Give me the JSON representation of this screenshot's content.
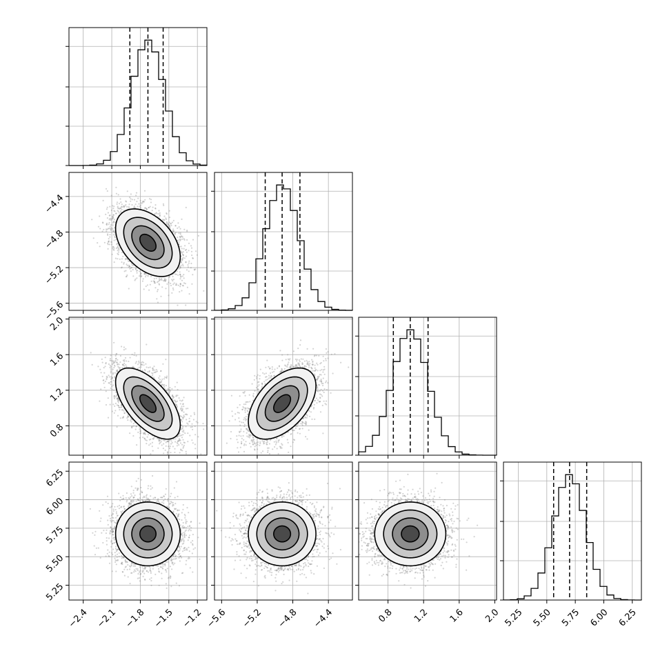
{
  "chart_data": {
    "type": "corner",
    "title": "",
    "grid": true,
    "quantiles": [
      0.16,
      0.5,
      0.84
    ],
    "colors": {
      "ink": "#000000",
      "grid": "#b0b0b0",
      "scatter": "#808080",
      "background": "#ffffff"
    },
    "parameters": [
      {
        "id": "p0",
        "range": [
          -2.55,
          -1.1
        ],
        "ticks": [
          -2.4,
          -2.1,
          -1.8,
          -1.5,
          -1.2
        ],
        "tick_labels": [
          "−2.4",
          "−2.1",
          "−1.8",
          "−1.5",
          "−1.2"
        ],
        "mean": -1.72,
        "sd": 0.17,
        "quantile_values": [
          -1.91,
          -1.72,
          -1.56
        ]
      },
      {
        "id": "p1",
        "range": [
          -5.68,
          -4.13
        ],
        "ticks": [
          -5.6,
          -5.2,
          -4.8,
          -4.4
        ],
        "tick_labels": [
          "−5.6",
          "−5.2",
          "−4.8",
          "−4.4"
        ],
        "mean": -4.92,
        "sd": 0.19,
        "quantile_values": [
          -5.11,
          -4.92,
          -4.72
        ]
      },
      {
        "id": "p2",
        "range": [
          0.47,
          2.02
        ],
        "ticks": [
          0.8,
          1.2,
          1.6,
          2.0
        ],
        "tick_labels": [
          "0.8",
          "1.2",
          "1.6",
          "2.0"
        ],
        "mean": 1.05,
        "sd": 0.2,
        "quantile_values": [
          0.86,
          1.05,
          1.25
        ]
      },
      {
        "id": "p3",
        "range": [
          5.12,
          6.33
        ],
        "ticks": [
          5.25,
          5.5,
          5.75,
          6.0,
          6.25
        ],
        "tick_labels": [
          "5.25",
          "5.50",
          "5.75",
          "6.00",
          "6.25"
        ],
        "mean": 5.7,
        "sd": 0.14,
        "quantile_values": [
          5.56,
          5.7,
          5.85
        ]
      }
    ],
    "correlations": [
      {
        "x": 0,
        "y": 1,
        "r": -0.42
      },
      {
        "x": 0,
        "y": 2,
        "r": -0.6
      },
      {
        "x": 1,
        "y": 2,
        "r": 0.5
      },
      {
        "x": 0,
        "y": 3,
        "r": 0.0
      },
      {
        "x": 1,
        "y": 3,
        "r": 0.0
      },
      {
        "x": 2,
        "y": 3,
        "r": 0.0
      }
    ],
    "contour_levels_sigma": [
      0.5,
      1.0,
      1.5,
      2.0
    ],
    "hist_bins": 20,
    "n_samples": 4000
  }
}
